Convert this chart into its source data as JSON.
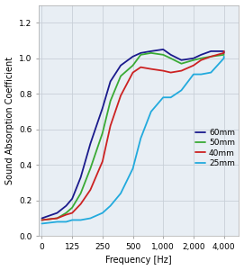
{
  "title": "",
  "xlabel": "Frequency [Hz]",
  "ylabel": "Sound Absorption Coefficient",
  "background_color": "#ffffff",
  "plot_bg_color": "#e8eef4",
  "grid_color": "#c8d0d8",
  "legend_labels": [
    "60mm",
    "50mm",
    "40mm",
    "25mm"
  ],
  "line_colors": [
    "#1a1a8c",
    "#3aaa35",
    "#cc2222",
    "#22aadd"
  ],
  "frequencies": [
    0,
    63,
    100,
    125,
    160,
    200,
    250,
    315,
    400,
    500,
    630,
    800,
    1000,
    1250,
    1600,
    2000,
    2500,
    3150,
    4000,
    4500
  ],
  "y_60mm": [
    0.1,
    0.13,
    0.17,
    0.21,
    0.33,
    0.52,
    0.72,
    0.87,
    0.96,
    1.01,
    1.03,
    1.04,
    1.05,
    1.02,
    0.99,
    1.0,
    1.02,
    1.04,
    1.04,
    1.03
  ],
  "y_50mm": [
    0.09,
    0.1,
    0.13,
    0.16,
    0.24,
    0.38,
    0.58,
    0.76,
    0.9,
    0.96,
    1.02,
    1.03,
    1.02,
    1.0,
    0.97,
    0.99,
    1.0,
    1.01,
    1.02,
    1.02
  ],
  "y_40mm": [
    0.09,
    0.1,
    0.12,
    0.13,
    0.18,
    0.26,
    0.42,
    0.62,
    0.79,
    0.92,
    0.95,
    0.94,
    0.93,
    0.92,
    0.93,
    0.96,
    0.99,
    1.01,
    1.03,
    1.04
  ],
  "y_25mm": [
    0.07,
    0.08,
    0.08,
    0.09,
    0.09,
    0.1,
    0.13,
    0.17,
    0.24,
    0.38,
    0.55,
    0.7,
    0.78,
    0.78,
    0.82,
    0.91,
    0.91,
    0.92,
    1.0,
    1.01
  ],
  "ylim": [
    0.0,
    1.3
  ],
  "xtick_positions": [
    0,
    125,
    250,
    500,
    1000,
    2000,
    4000
  ],
  "xtick_labels": [
    "0",
    "125",
    "250",
    "500",
    "1,000",
    "2,000",
    "4,000"
  ],
  "yticks": [
    0.0,
    0.2,
    0.4,
    0.6,
    0.8,
    1.0,
    1.2
  ],
  "legend_fontsize": 6.5,
  "axis_label_fontsize": 7,
  "tick_fontsize": 6.5,
  "line_width": 1.3
}
